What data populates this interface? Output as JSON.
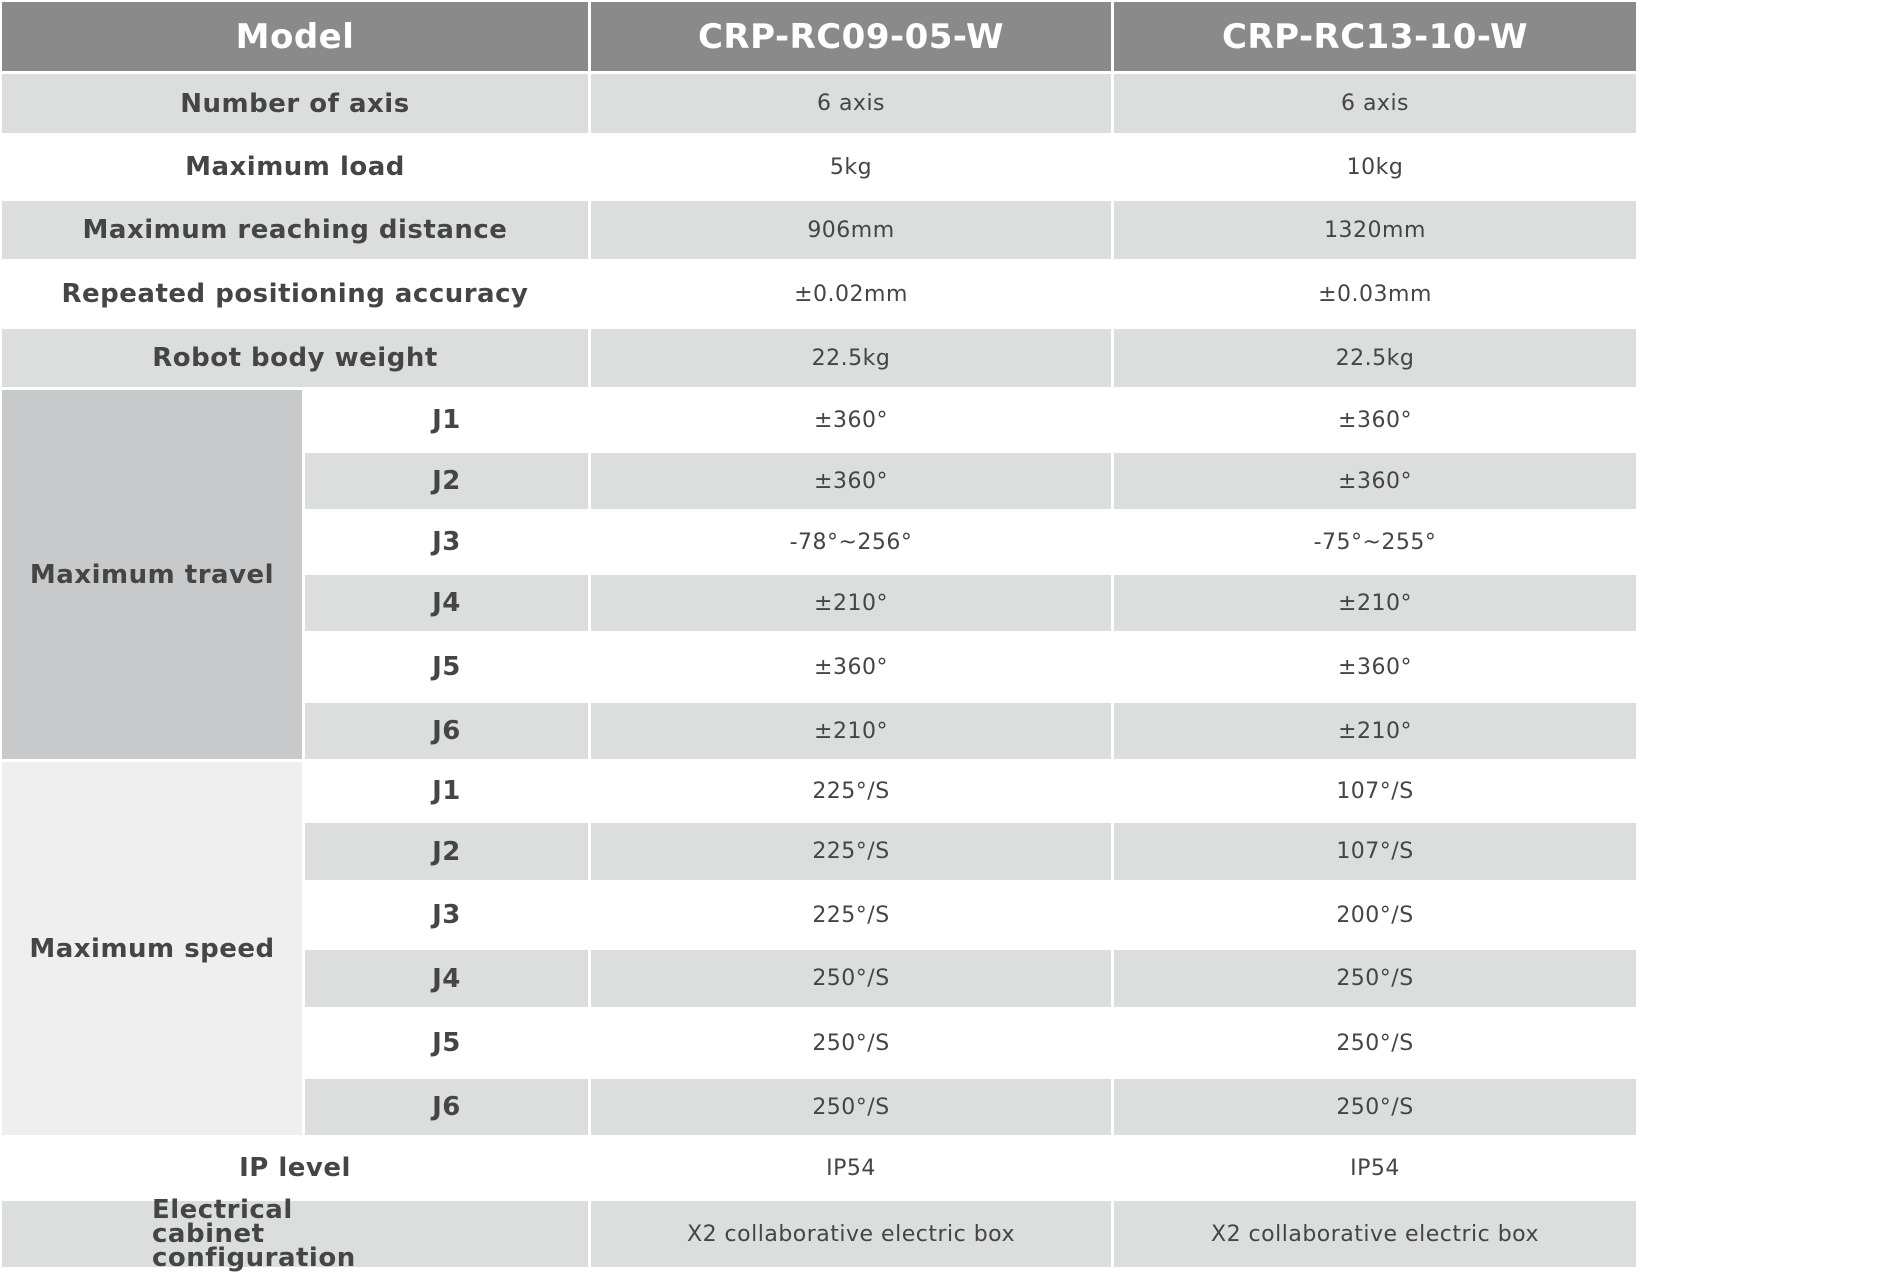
{
  "header": {
    "label": "Model",
    "models": [
      "CRP-RC09-05-W",
      "CRP-RC13-10-W"
    ]
  },
  "rows": [
    {
      "label": "Number of axis",
      "values": [
        "6 axis",
        "6 axis"
      ]
    },
    {
      "label": "Maximum load",
      "values": [
        "5kg",
        "10kg"
      ]
    },
    {
      "label": "Maximum reaching distance",
      "values": [
        "906mm",
        "1320mm"
      ]
    },
    {
      "label": "Repeated positioning accuracy",
      "values": [
        "±0.02mm",
        "±0.03mm"
      ]
    },
    {
      "label": "Robot body weight",
      "values": [
        "22.5kg",
        "22.5kg"
      ]
    }
  ],
  "groups": [
    {
      "label": "Maximum travel",
      "joints": [
        {
          "joint": "J1",
          "values": [
            "±360°",
            "±360°"
          ]
        },
        {
          "joint": "J2",
          "values": [
            "±360°",
            "±360°"
          ]
        },
        {
          "joint": "J3",
          "values": [
            "-78°~256°",
            "-75°~255°"
          ]
        },
        {
          "joint": "J4",
          "values": [
            "±210°",
            "±210°"
          ]
        },
        {
          "joint": "J5",
          "values": [
            "±360°",
            "±360°"
          ]
        },
        {
          "joint": "J6",
          "values": [
            "±210°",
            "±210°"
          ]
        }
      ]
    },
    {
      "label": "Maximum speed",
      "joints": [
        {
          "joint": "J1",
          "values": [
            "225°/S",
            "107°/S"
          ]
        },
        {
          "joint": "J2",
          "values": [
            "225°/S",
            "107°/S"
          ]
        },
        {
          "joint": "J3",
          "values": [
            "225°/S",
            "200°/S"
          ]
        },
        {
          "joint": "J4",
          "values": [
            "250°/S",
            "250°/S"
          ]
        },
        {
          "joint": "J5",
          "values": [
            "250°/S",
            "250°/S"
          ]
        },
        {
          "joint": "J6",
          "values": [
            "250°/S",
            "250°/S"
          ]
        }
      ]
    }
  ],
  "footer_rows": [
    {
      "label": "IP level",
      "values": [
        "IP54",
        "IP54"
      ]
    },
    {
      "label": "Electrical cabinet configuration",
      "values": [
        "X2 collaborative electric box",
        "X2 collaborative electric box"
      ]
    }
  ],
  "colors": {
    "header": "#8a8a8a",
    "stripe": "#dcdddd",
    "travel_group": "#c8c9ca",
    "speed_group": "#efefef",
    "text": "#454545"
  }
}
